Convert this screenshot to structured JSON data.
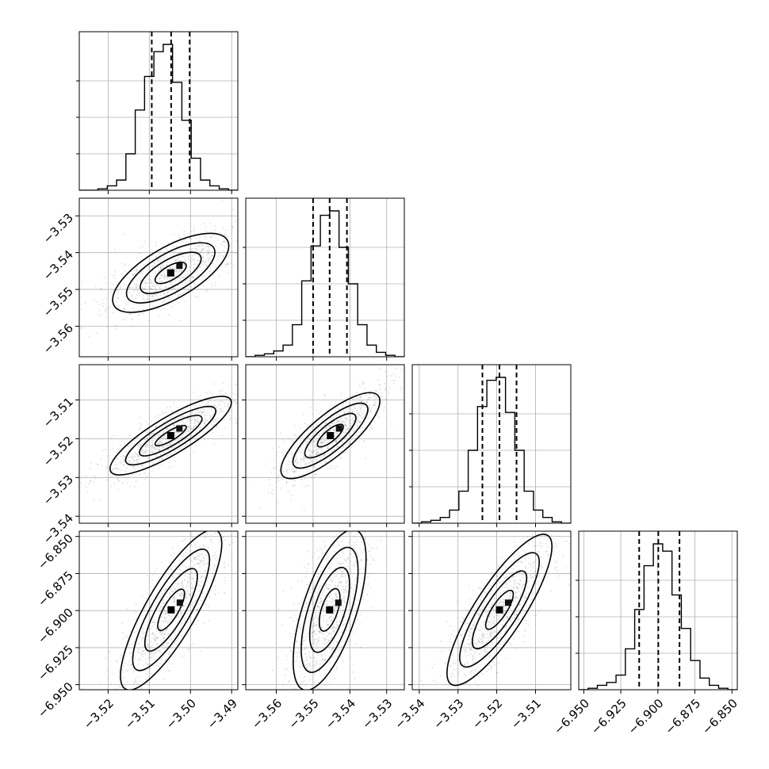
{
  "chart_data": {
    "type": "corner",
    "grid": true,
    "n_params": 4,
    "params": [
      {
        "index": 0,
        "lim": [
          -3.527,
          -3.4885
        ],
        "ticks": [
          -3.52,
          -3.51,
          -3.5,
          -3.49
        ],
        "tick_labels": [
          "−3.52",
          "−3.51",
          "−3.50",
          "−3.49"
        ],
        "median": -3.5047,
        "q16": -3.5094,
        "q84": -3.5002,
        "hist": [
          0.0,
          0.0,
          0.01,
          0.03,
          0.07,
          0.25,
          0.55,
          0.78,
          0.95,
          1.0,
          0.74,
          0.48,
          0.22,
          0.07,
          0.03,
          0.01,
          0.0
        ]
      },
      {
        "index": 1,
        "lim": [
          -3.5683,
          -3.5252
        ],
        "ticks": [
          -3.56,
          -3.55,
          -3.54,
          -3.53
        ],
        "tick_labels": [
          "−3.56",
          "−3.55",
          "−3.54",
          "−3.53"
        ],
        "median": -3.5455,
        "q16": -3.55,
        "q84": -3.5408,
        "hist": [
          0.0,
          0.01,
          0.02,
          0.04,
          0.08,
          0.22,
          0.52,
          0.76,
          0.97,
          1.0,
          0.75,
          0.5,
          0.22,
          0.08,
          0.03,
          0.01,
          0.0
        ]
      },
      {
        "index": 2,
        "lim": [
          -3.5418,
          -3.5009
        ],
        "ticks": [
          -3.54,
          -3.53,
          -3.52,
          -3.51
        ],
        "tick_labels": [
          "−3.54",
          "−3.53",
          "−3.52",
          "−3.51"
        ],
        "median": -3.5193,
        "q16": -3.5237,
        "q84": -3.5149,
        "hist": [
          0.0,
          0.01,
          0.02,
          0.04,
          0.09,
          0.22,
          0.5,
          0.8,
          0.98,
          1.0,
          0.76,
          0.5,
          0.22,
          0.09,
          0.04,
          0.01,
          0.0
        ]
      },
      {
        "index": 3,
        "lim": [
          -6.9534,
          -6.8464
        ],
        "ticks": [
          -6.95,
          -6.925,
          -6.9,
          -6.875,
          -6.85
        ],
        "tick_labels": [
          "−6.950",
          "−6.925",
          "−6.900",
          "−6.875",
          "−6.850"
        ],
        "median": -6.8997,
        "q16": -6.9126,
        "q84": -6.8854,
        "hist": [
          0.0,
          0.01,
          0.03,
          0.05,
          0.1,
          0.28,
          0.55,
          0.85,
          1.0,
          0.95,
          0.65,
          0.42,
          0.2,
          0.08,
          0.03,
          0.01,
          0.0
        ]
      }
    ],
    "pairs": [
      {
        "x": 0,
        "y": 1,
        "center": [
          -3.5048,
          -3.5455
        ],
        "angle_deg": -30,
        "contours": [
          [
            0.0018,
            0.0045
          ],
          [
            0.0034,
            0.0088
          ],
          [
            0.005,
            0.0128
          ],
          [
            0.0066,
            0.0168
          ]
        ]
      },
      {
        "x": 0,
        "y": 2,
        "center": [
          -3.5048,
          -3.5192
        ],
        "angle_deg": -31,
        "contours": [
          [
            0.0012,
            0.0045
          ],
          [
            0.0024,
            0.009
          ],
          [
            0.0034,
            0.013
          ],
          [
            0.0046,
            0.0175
          ]
        ]
      },
      {
        "x": 1,
        "y": 2,
        "center": [
          -3.5453,
          -3.5192
        ],
        "angle_deg": -40,
        "contours": [
          [
            0.0015,
            0.0043
          ],
          [
            0.0028,
            0.0085
          ],
          [
            0.004,
            0.0125
          ],
          [
            0.0054,
            0.0165
          ]
        ]
      },
      {
        "x": 0,
        "y": 3,
        "center": [
          -3.5047,
          -6.8995
        ],
        "angle_deg": -60,
        "contours": [
          [
            0.003,
            0.0095
          ],
          [
            0.0055,
            0.019
          ],
          [
            0.0078,
            0.028
          ],
          [
            0.0102,
            0.037
          ]
        ]
      },
      {
        "x": 1,
        "y": 3,
        "center": [
          -3.5455,
          -6.8995
        ],
        "angle_deg": -72,
        "contours": [
          [
            0.0035,
            0.0095
          ],
          [
            0.0065,
            0.019
          ],
          [
            0.009,
            0.028
          ],
          [
            0.0115,
            0.036
          ]
        ]
      },
      {
        "x": 2,
        "y": 3,
        "center": [
          -3.5193,
          -6.8995
        ],
        "angle_deg": -57,
        "contours": [
          [
            0.003,
            0.0095
          ],
          [
            0.0055,
            0.019
          ],
          [
            0.0078,
            0.028
          ],
          [
            0.0102,
            0.037
          ]
        ]
      }
    ]
  }
}
